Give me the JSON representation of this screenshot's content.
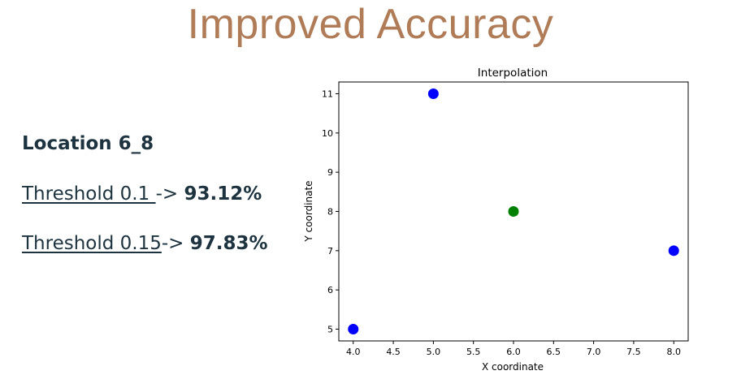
{
  "slide": {
    "title": "Improved Accuracy"
  },
  "results": {
    "location": "Location 6_8",
    "thresholds": [
      {
        "label": "Threshold 0.1 ",
        "arrow": "-> ",
        "accuracy": "93.12%"
      },
      {
        "label": "Threshold 0.15",
        "arrow": "-> ",
        "accuracy": "97.83%"
      }
    ]
  },
  "chart_data": {
    "type": "scatter",
    "title": "Interpolation",
    "xlabel": "X coordinate",
    "ylabel": "Y coordinate",
    "xlim": [
      3.82,
      8.18
    ],
    "ylim": [
      4.7,
      11.3
    ],
    "xticks": [
      "4.0",
      "4.5",
      "5.0",
      "5.5",
      "6.0",
      "6.5",
      "7.0",
      "7.5",
      "8.0"
    ],
    "yticks": [
      "5",
      "6",
      "7",
      "8",
      "9",
      "10",
      "11"
    ],
    "grid": false,
    "series": [
      {
        "color": "#0000ff",
        "points": [
          {
            "x": 5.0,
            "y": 11.0
          },
          {
            "x": 8.0,
            "y": 7.0
          },
          {
            "x": 4.0,
            "y": 5.0
          }
        ]
      },
      {
        "color": "#008000",
        "points": [
          {
            "x": 6.0,
            "y": 8.0
          }
        ]
      }
    ]
  }
}
